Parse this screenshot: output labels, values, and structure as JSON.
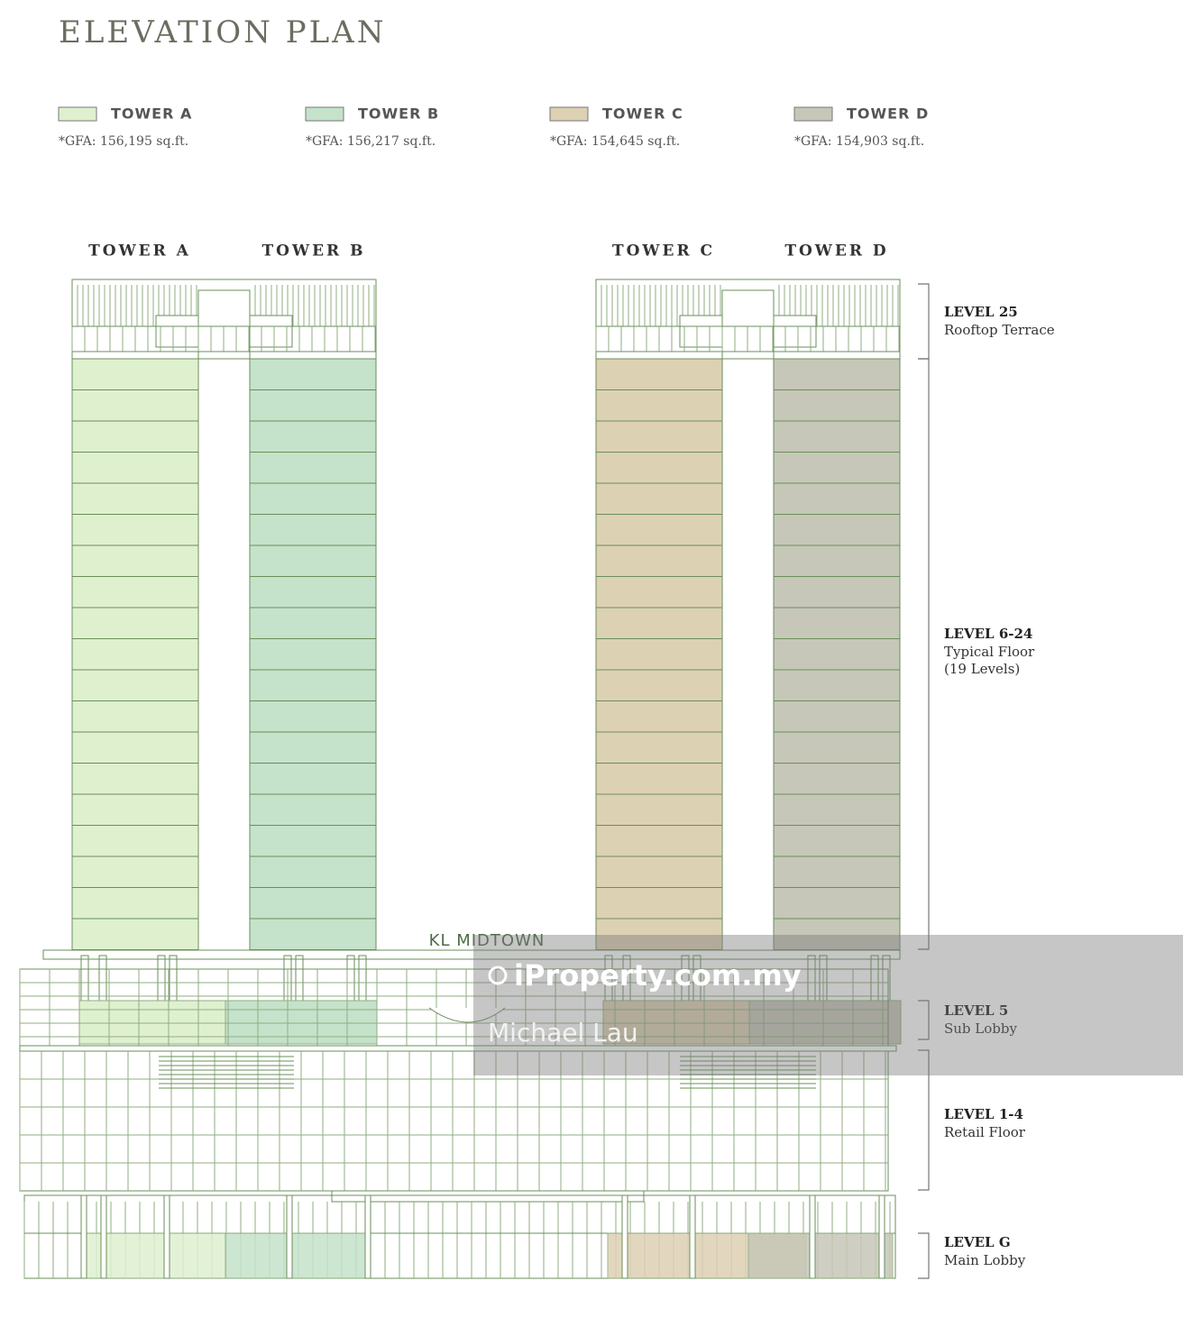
{
  "title": "ELEVATION PLAN",
  "legend": [
    {
      "name": "TOWER A",
      "note": "*GFA: 156,195 sq.ft.",
      "color": "#dff0cf"
    },
    {
      "name": "TOWER B",
      "note": "*GFA: 156,217 sq.ft.",
      "color": "#c5e2cb"
    },
    {
      "name": "TOWER C",
      "note": "*GFA: 154,645 sq.ft.",
      "color": "#ddd1b3"
    },
    {
      "name": "TOWER D",
      "note": "*GFA: 154,903 sq.ft.",
      "color": "#c6c7b8"
    }
  ],
  "towers": [
    "TOWER A",
    "TOWER B",
    "TOWER C",
    "TOWER D"
  ],
  "building_sign": "KL MIDTOWN",
  "levels": [
    {
      "level": "LEVEL 25",
      "desc": [
        "Rooftop Terrace"
      ]
    },
    {
      "level": "LEVEL 6-24",
      "desc": [
        "Typical Floor",
        "(19 Levels)"
      ]
    },
    {
      "level": "LEVEL 5",
      "desc": [
        "Sub Lobby"
      ]
    },
    {
      "level": "LEVEL 1-4",
      "desc": [
        "Retail Floor"
      ]
    },
    {
      "level": "LEVEL G",
      "desc": [
        "Main Lobby"
      ]
    }
  ],
  "watermark": [
    "iProperty.com.my",
    "Michael Lau"
  ]
}
